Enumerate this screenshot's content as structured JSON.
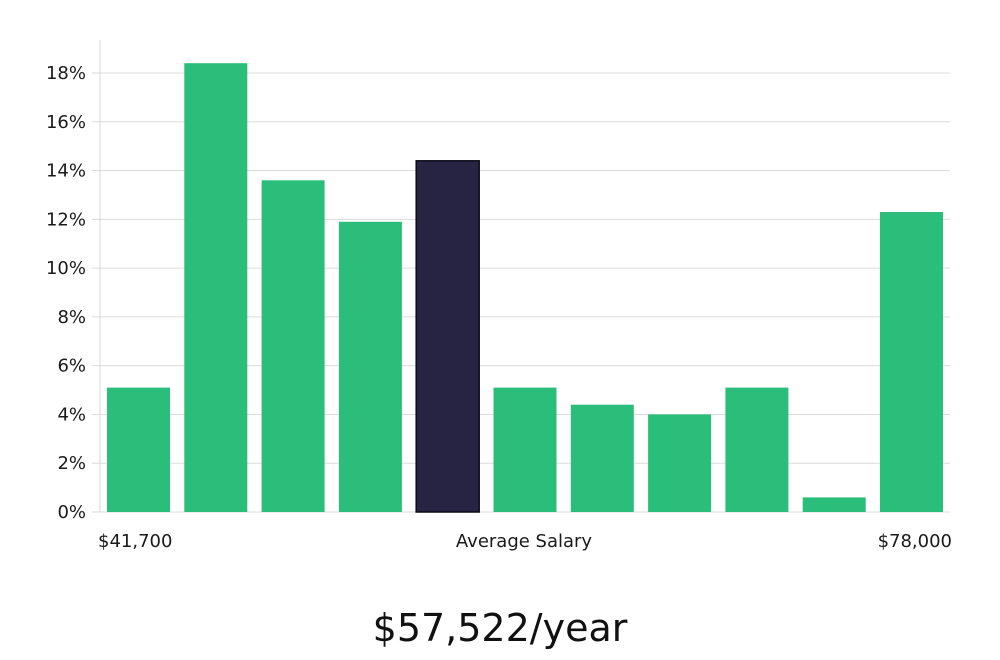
{
  "chart_data": {
    "type": "bar",
    "title": "",
    "xlabel": "Average Salary",
    "ylabel": "",
    "ylim": [
      0,
      19
    ],
    "yticks": [
      0,
      2,
      4,
      6,
      8,
      10,
      12,
      14,
      16,
      18
    ],
    "ytick_suffix": "%",
    "x_min_label": "$41,700",
    "x_max_label": "$78,000",
    "values": [
      5.1,
      18.4,
      13.6,
      11.9,
      14.4,
      5.1,
      4.4,
      4.0,
      5.1,
      0.6,
      12.3
    ],
    "highlight_index": 4,
    "colors": {
      "bar": "#2bbd7a",
      "highlight": "#262442",
      "highlight_border": "#0d0c1a"
    },
    "grid": true
  },
  "caption": {
    "salary": "$57,522/year"
  }
}
